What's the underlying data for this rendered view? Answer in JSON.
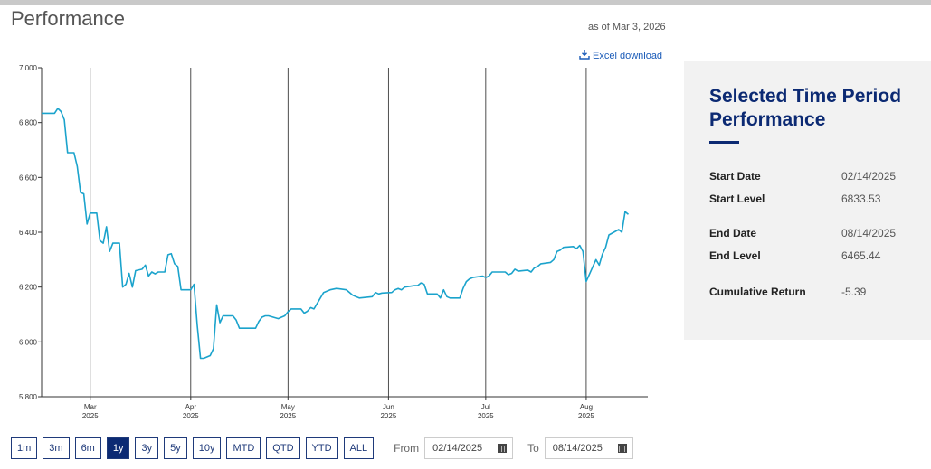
{
  "header": {
    "title": "Performance",
    "as_of": "as of Mar 3, 2026",
    "excel_download": "Excel download"
  },
  "chart_data": {
    "type": "line",
    "title": "",
    "xlabel": "",
    "ylabel": "",
    "x_start": "2025-02-14",
    "x_end": "2025-08-20",
    "ylim": [
      5800,
      7000
    ],
    "yticks": [
      "7,000",
      "6,800",
      "6,600",
      "6,400",
      "6,200",
      "6,000",
      "5,800"
    ],
    "ytick_values": [
      7000,
      6800,
      6600,
      6400,
      6200,
      6000,
      5800
    ],
    "xticks": [
      {
        "date": "2025-03-01",
        "month": "Mar",
        "year": "2025"
      },
      {
        "date": "2025-04-01",
        "month": "Apr",
        "year": "2025"
      },
      {
        "date": "2025-05-01",
        "month": "May",
        "year": "2025"
      },
      {
        "date": "2025-06-01",
        "month": "Jun",
        "year": "2025"
      },
      {
        "date": "2025-07-01",
        "month": "Jul",
        "year": "2025"
      },
      {
        "date": "2025-08-01",
        "month": "Aug",
        "year": "2025"
      }
    ],
    "vertical_gridlines": true,
    "series": [
      {
        "color": "#1ba3cc",
        "points": [
          [
            "2025-02-14",
            6834
          ],
          [
            "2025-02-17",
            6834
          ],
          [
            "2025-02-18",
            6834
          ],
          [
            "2025-02-19",
            6852
          ],
          [
            "2025-02-20",
            6840
          ],
          [
            "2025-02-21",
            6810
          ],
          [
            "2025-02-22",
            6690
          ],
          [
            "2025-02-24",
            6690
          ],
          [
            "2025-02-25",
            6640
          ],
          [
            "2025-02-26",
            6545
          ],
          [
            "2025-02-27",
            6540
          ],
          [
            "2025-02-28",
            6430
          ],
          [
            "2025-03-01",
            6470
          ],
          [
            "2025-03-03",
            6470
          ],
          [
            "2025-03-04",
            6370
          ],
          [
            "2025-03-05",
            6360
          ],
          [
            "2025-03-06",
            6420
          ],
          [
            "2025-03-07",
            6330
          ],
          [
            "2025-03-08",
            6360
          ],
          [
            "2025-03-10",
            6360
          ],
          [
            "2025-03-11",
            6200
          ],
          [
            "2025-03-12",
            6210
          ],
          [
            "2025-03-13",
            6250
          ],
          [
            "2025-03-14",
            6200
          ],
          [
            "2025-03-15",
            6260
          ],
          [
            "2025-03-17",
            6265
          ],
          [
            "2025-03-18",
            6280
          ],
          [
            "2025-03-19",
            6240
          ],
          [
            "2025-03-20",
            6255
          ],
          [
            "2025-03-21",
            6248
          ],
          [
            "2025-03-22",
            6255
          ],
          [
            "2025-03-24",
            6255
          ],
          [
            "2025-03-25",
            6318
          ],
          [
            "2025-03-26",
            6322
          ],
          [
            "2025-03-27",
            6285
          ],
          [
            "2025-03-28",
            6275
          ],
          [
            "2025-03-29",
            6190
          ],
          [
            "2025-03-31",
            6190
          ],
          [
            "2025-04-01",
            6190
          ],
          [
            "2025-04-02",
            6210
          ],
          [
            "2025-04-03",
            6060
          ],
          [
            "2025-04-04",
            5940
          ],
          [
            "2025-04-05",
            5940
          ],
          [
            "2025-04-07",
            5950
          ],
          [
            "2025-04-08",
            5975
          ],
          [
            "2025-04-09",
            6135
          ],
          [
            "2025-04-10",
            6070
          ],
          [
            "2025-04-11",
            6095
          ],
          [
            "2025-04-14",
            6095
          ],
          [
            "2025-04-15",
            6080
          ],
          [
            "2025-04-16",
            6050
          ],
          [
            "2025-04-17",
            6050
          ],
          [
            "2025-04-21",
            6050
          ],
          [
            "2025-04-22",
            6075
          ],
          [
            "2025-04-23",
            6090
          ],
          [
            "2025-04-24",
            6095
          ],
          [
            "2025-04-25",
            6095
          ],
          [
            "2025-04-28",
            6085
          ],
          [
            "2025-04-29",
            6090
          ],
          [
            "2025-04-30",
            6095
          ],
          [
            "2025-05-01",
            6110
          ],
          [
            "2025-05-02",
            6120
          ],
          [
            "2025-05-05",
            6120
          ],
          [
            "2025-05-06",
            6105
          ],
          [
            "2025-05-07",
            6112
          ],
          [
            "2025-05-08",
            6125
          ],
          [
            "2025-05-09",
            6120
          ],
          [
            "2025-05-12",
            6180
          ],
          [
            "2025-05-13",
            6185
          ],
          [
            "2025-05-14",
            6190
          ],
          [
            "2025-05-16",
            6195
          ],
          [
            "2025-05-19",
            6190
          ],
          [
            "2025-05-20",
            6180
          ],
          [
            "2025-05-21",
            6170
          ],
          [
            "2025-05-22",
            6165
          ],
          [
            "2025-05-23",
            6160
          ],
          [
            "2025-05-27",
            6165
          ],
          [
            "2025-05-28",
            6180
          ],
          [
            "2025-05-29",
            6175
          ],
          [
            "2025-05-30",
            6178
          ],
          [
            "2025-06-02",
            6180
          ],
          [
            "2025-06-03",
            6190
          ],
          [
            "2025-06-04",
            6195
          ],
          [
            "2025-06-05",
            6190
          ],
          [
            "2025-06-06",
            6200
          ],
          [
            "2025-06-09",
            6205
          ],
          [
            "2025-06-10",
            6205
          ],
          [
            "2025-06-11",
            6215
          ],
          [
            "2025-06-12",
            6210
          ],
          [
            "2025-06-13",
            6175
          ],
          [
            "2025-06-16",
            6175
          ],
          [
            "2025-06-17",
            6160
          ],
          [
            "2025-06-18",
            6190
          ],
          [
            "2025-06-19",
            6165
          ],
          [
            "2025-06-20",
            6160
          ],
          [
            "2025-06-23",
            6160
          ],
          [
            "2025-06-24",
            6195
          ],
          [
            "2025-06-25",
            6220
          ],
          [
            "2025-06-26",
            6230
          ],
          [
            "2025-06-27",
            6235
          ],
          [
            "2025-06-30",
            6240
          ],
          [
            "2025-07-01",
            6235
          ],
          [
            "2025-07-02",
            6240
          ],
          [
            "2025-07-03",
            6255
          ],
          [
            "2025-07-07",
            6255
          ],
          [
            "2025-07-08",
            6245
          ],
          [
            "2025-07-09",
            6250
          ],
          [
            "2025-07-10",
            6265
          ],
          [
            "2025-07-11",
            6258
          ],
          [
            "2025-07-14",
            6262
          ],
          [
            "2025-07-15",
            6255
          ],
          [
            "2025-07-16",
            6270
          ],
          [
            "2025-07-17",
            6275
          ],
          [
            "2025-07-18",
            6285
          ],
          [
            "2025-07-21",
            6290
          ],
          [
            "2025-07-22",
            6300
          ],
          [
            "2025-07-23",
            6330
          ],
          [
            "2025-07-24",
            6335
          ],
          [
            "2025-07-25",
            6345
          ],
          [
            "2025-07-28",
            6348
          ],
          [
            "2025-07-29",
            6340
          ],
          [
            "2025-07-30",
            6352
          ],
          [
            "2025-07-31",
            6330
          ],
          [
            "2025-08-01",
            6220
          ],
          [
            "2025-08-04",
            6300
          ],
          [
            "2025-08-05",
            6280
          ],
          [
            "2025-08-06",
            6320
          ],
          [
            "2025-08-07",
            6345
          ],
          [
            "2025-08-08",
            6390
          ],
          [
            "2025-08-11",
            6410
          ],
          [
            "2025-08-12",
            6400
          ],
          [
            "2025-08-13",
            6475
          ],
          [
            "2025-08-14",
            6465
          ]
        ]
      }
    ]
  },
  "range_buttons": [
    {
      "label": "1m",
      "active": false
    },
    {
      "label": "3m",
      "active": false
    },
    {
      "label": "6m",
      "active": false
    },
    {
      "label": "1y",
      "active": true
    },
    {
      "label": "3y",
      "active": false
    },
    {
      "label": "5y",
      "active": false
    },
    {
      "label": "10y",
      "active": false
    },
    {
      "label": "MTD",
      "active": false
    },
    {
      "label": "QTD",
      "active": false
    },
    {
      "label": "YTD",
      "active": false
    },
    {
      "label": "ALL",
      "active": false
    }
  ],
  "date_range": {
    "from_label": "From",
    "from_value": "02/14/2025",
    "to_label": "To",
    "to_value": "08/14/2025"
  },
  "panel": {
    "title": "Selected Time Period Performance",
    "start_date_label": "Start Date",
    "start_date": "02/14/2025",
    "start_level_label": "Start Level",
    "start_level": "6833.53",
    "end_date_label": "End Date",
    "end_date": "08/14/2025",
    "end_level_label": "End Level",
    "end_level": "6465.44",
    "cumulative_return_label": "Cumulative Return",
    "cumulative_return": "-5.39"
  },
  "colors": {
    "line": "#1ba3cc",
    "accent": "#0c2a73",
    "link": "#1a5bb8"
  }
}
